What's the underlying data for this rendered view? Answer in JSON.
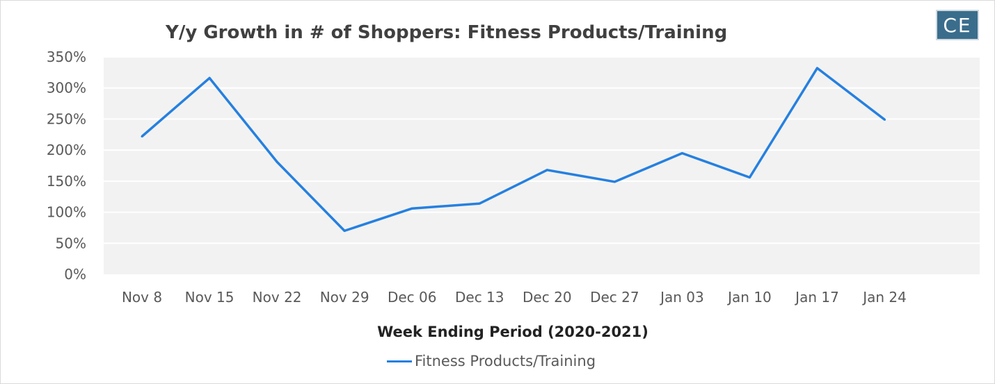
{
  "logo": {
    "text": "CE"
  },
  "chart_data": {
    "type": "line",
    "title": "Y/y Growth in # of Shoppers: Fitness Products/Training",
    "xlabel": "Week Ending Period (2020-2021)",
    "ylabel": "",
    "categories": [
      "Nov 8",
      "Nov 15",
      "Nov 22",
      "Nov 29",
      "Dec 06",
      "Dec 13",
      "Dec 20",
      "Dec 27",
      "Jan 03",
      "Jan 10",
      "Jan 17",
      "Jan 24"
    ],
    "series": [
      {
        "name": "Fitness Products/Training",
        "values": [
          222,
          316,
          181,
          70,
          106,
          114,
          168,
          149,
          195,
          156,
          332,
          249
        ],
        "color": "#2580e0"
      }
    ],
    "ylim": [
      0,
      350
    ],
    "yticks": [
      "0%",
      "50%",
      "100%",
      "150%",
      "200%",
      "250%",
      "300%",
      "350%"
    ],
    "grid": true,
    "legend": "bottom",
    "plot_background": "#f2f2f2"
  }
}
